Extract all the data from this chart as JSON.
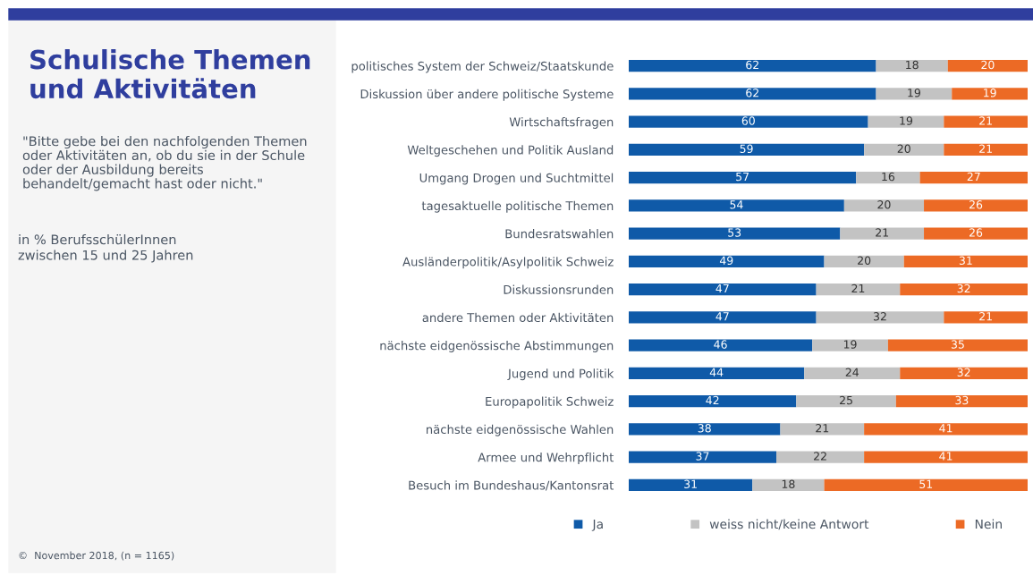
{
  "chart_data": {
    "type": "bar",
    "orientation": "horizontal",
    "stacked": true,
    "data_labels": true,
    "legend": "bottom",
    "grid": false,
    "title": "Schulische Themen\nund Aktivitäten",
    "subtitle": "\"Bitte gebe bei den nachfolgenden Themen\noder Aktivitäten an, ob du sie in der Schule\noder der Ausbildung bereits\nbehandelt/gemacht hast oder nicht.\"",
    "annotations": [
      "in % BerufsschülerInnen\nzwischen 15 und 25 Jahren",
      "©  November 2018, (n = 1165)"
    ],
    "categories": [
      "politisches System der Schweiz/Staatskunde",
      "Diskussion über andere politische Systeme",
      "Wirtschaftsfragen",
      "Weltgeschehen und Politik Ausland",
      "Umgang Drogen und Suchtmittel",
      "tagesaktuelle politische Themen",
      "Bundesratswahlen",
      "Ausländerpolitik/Asylpolitik Schweiz",
      "Diskussionsrunden",
      "andere Themen oder Aktivitäten",
      "nächste eidgenössische Abstimmungen",
      "Jugend und Politik",
      "Europapolitik Schweiz",
      "nächste eidgenössische Wahlen",
      "Armee und Wehrpflicht",
      "Besuch im Bundeshaus/Kantonsrat"
    ],
    "series": [
      {
        "name": "Ja",
        "color": "#0f5aa8",
        "values": [
          62,
          62,
          60,
          59,
          57,
          54,
          53,
          49,
          47,
          47,
          46,
          44,
          42,
          38,
          37,
          31
        ]
      },
      {
        "name": "weiss nicht/keine Antwort",
        "color": "#c3c3c3",
        "values": [
          18,
          19,
          19,
          20,
          16,
          20,
          21,
          20,
          21,
          32,
          19,
          24,
          25,
          21,
          22,
          18
        ]
      },
      {
        "name": "Nein",
        "color": "#ec6a25",
        "values": [
          20,
          19,
          21,
          21,
          27,
          26,
          26,
          31,
          32,
          21,
          35,
          32,
          33,
          41,
          41,
          51
        ]
      }
    ]
  }
}
